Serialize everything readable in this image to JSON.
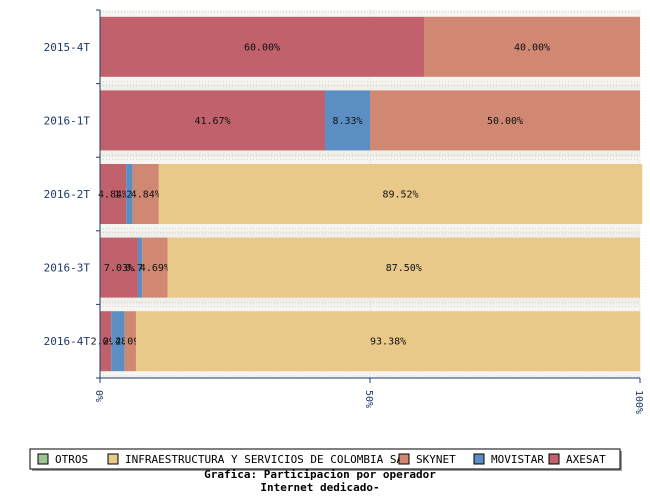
{
  "chart_data": {
    "type": "bar",
    "orientation": "horizontal",
    "stacked": "percent",
    "title": "Grafica: Participacion por operador",
    "subtitle": "Internet dedicado-",
    "categories": [
      "2015-4T",
      "2016-1T",
      "2016-2T",
      "2016-3T",
      "2016-4T"
    ],
    "x_ticks": [
      "0%",
      "50%",
      "100%"
    ],
    "xlim": [
      0,
      100
    ],
    "grid": true,
    "legend_position": "bottom",
    "series": [
      {
        "name": "AXESAT",
        "color": "#c0616b",
        "values": [
          60.0,
          41.67,
          4.84,
          7.03,
          2.09
        ]
      },
      {
        "name": "MOVISTAR",
        "color": "#5b8fc4",
        "values": [
          0,
          8.33,
          1.21,
          0.78,
          2.48
        ]
      },
      {
        "name": "SKYNET",
        "color": "#d08872",
        "values": [
          40.0,
          50.0,
          4.84,
          4.69,
          2.09
        ]
      },
      {
        "name": "INFRAESTRUCTURA Y SERVICIOS DE COLOMBIA SAS",
        "color": "#e9c98a",
        "values": [
          0,
          0,
          89.52,
          87.5,
          93.38
        ]
      },
      {
        "name": "OTROS",
        "color": "#9fc494",
        "values": [
          0,
          0,
          0,
          0,
          0
        ]
      }
    ],
    "data_labels": [
      [
        "60.00%",
        "",
        "40.00%",
        "",
        ""
      ],
      [
        "41.67%",
        "8.33%",
        "50.00%",
        "",
        ""
      ],
      [
        "4.84%",
        "1.21%",
        "4.84%",
        "89.52%",
        ""
      ],
      [
        "7.03%",
        "0.78%",
        "4.69%",
        "87.50%",
        ""
      ],
      [
        "2.09%",
        "2.48%",
        "2.09%",
        "93.38%",
        ""
      ]
    ],
    "legend": [
      "OTROS",
      "INFRAESTRUCTURA Y SERVICIOS DE COLOMBIA SAS",
      "SKYNET",
      "MOVISTAR",
      "AXESAT"
    ]
  }
}
